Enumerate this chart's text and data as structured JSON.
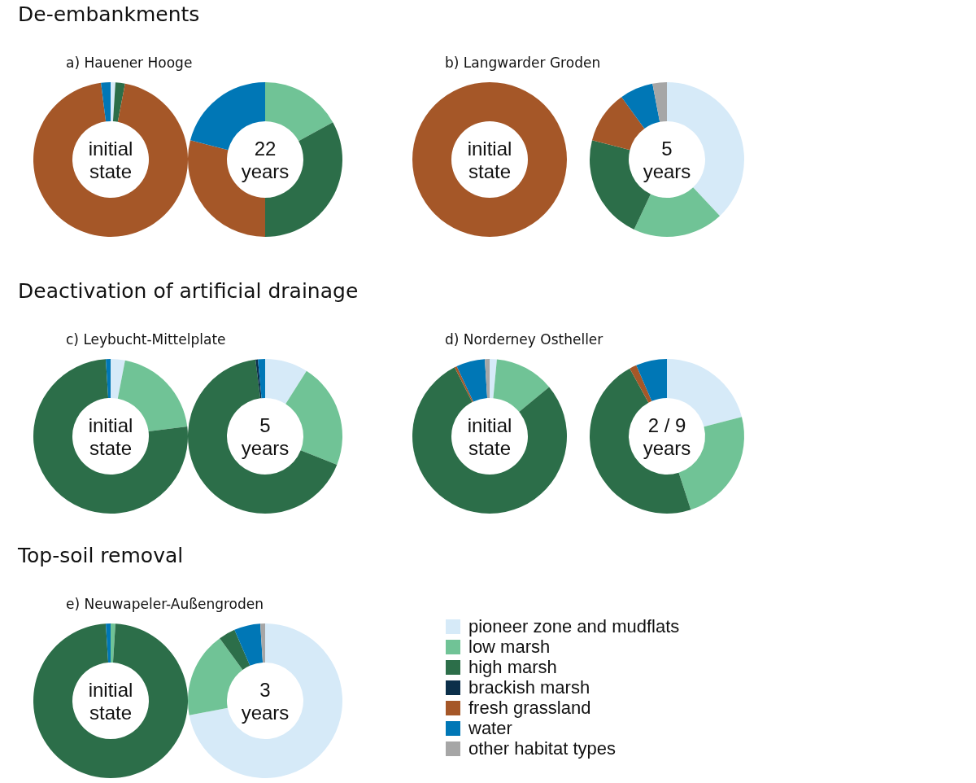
{
  "chart_data": [
    {
      "type": "donut",
      "title": "a) Hauener Hooge",
      "annotations": [
        "De-embankments",
        "initial\nstate"
      ],
      "categories": [
        null,
        null,
        null,
        null,
        null,
        null,
        null
      ],
      "values": [
        1,
        0,
        2,
        0,
        95,
        2,
        0
      ],
      "colors": [
        "#d6eaf8",
        "#70c396",
        "#2c6e49",
        "#0b2f4a",
        "#a55728",
        "#0077b6",
        "#a6a6a6"
      ],
      "legend": false
    },
    {
      "type": "donut",
      "annotations": [
        "22\nyears"
      ],
      "categories": [
        null,
        null,
        null,
        null,
        null,
        null,
        null
      ],
      "values": [
        0,
        17,
        33,
        0,
        29,
        21,
        0
      ],
      "colors": [
        "#d6eaf8",
        "#70c396",
        "#2c6e49",
        "#0b2f4a",
        "#a55728",
        "#0077b6",
        "#a6a6a6"
      ],
      "legend": false
    },
    {
      "type": "donut",
      "title": "b) Langwarder Groden",
      "annotations": [
        "initial\nstate"
      ],
      "categories": [
        null,
        null,
        null,
        null,
        null,
        null,
        null
      ],
      "values": [
        0,
        0,
        0,
        0,
        100,
        0,
        0
      ],
      "colors": [
        "#d6eaf8",
        "#70c396",
        "#2c6e49",
        "#0b2f4a",
        "#a55728",
        "#0077b6",
        "#a6a6a6"
      ],
      "legend": false
    },
    {
      "type": "donut",
      "annotations": [
        "5\nyears"
      ],
      "categories": [
        null,
        null,
        null,
        null,
        null,
        null,
        null
      ],
      "values": [
        38,
        19,
        22,
        0,
        11,
        7,
        3
      ],
      "colors": [
        "#d6eaf8",
        "#70c396",
        "#2c6e49",
        "#0b2f4a",
        "#a55728",
        "#0077b6",
        "#a6a6a6"
      ],
      "legend": false
    },
    {
      "type": "donut",
      "title": "c) Leybucht-Mittelplate",
      "annotations": [
        "Deactivation of artificial drainage",
        "initial\nstate"
      ],
      "categories": [
        null,
        null,
        null,
        null,
        null,
        null,
        null
      ],
      "values": [
        3,
        20,
        76,
        0,
        0,
        1,
        0
      ],
      "colors": [
        "#d6eaf8",
        "#70c396",
        "#2c6e49",
        "#0b2f4a",
        "#a55728",
        "#0077b6",
        "#a6a6a6"
      ],
      "legend": false
    },
    {
      "type": "donut",
      "annotations": [
        "5\nyears"
      ],
      "categories": [
        null,
        null,
        null,
        null,
        null,
        null,
        null
      ],
      "values": [
        9,
        22,
        67,
        0.5,
        0,
        1.5,
        0
      ],
      "colors": [
        "#d6eaf8",
        "#70c396",
        "#2c6e49",
        "#0b2f4a",
        "#a55728",
        "#0077b6",
        "#a6a6a6"
      ],
      "legend": false
    },
    {
      "type": "donut",
      "title": "d) Norderney Ostheller",
      "annotations": [
        "initial\nstate"
      ],
      "categories": [
        null,
        null,
        null,
        null,
        null,
        null,
        null
      ],
      "values": [
        1.5,
        12.5,
        78.5,
        0,
        0.5,
        6,
        1
      ],
      "colors": [
        "#d6eaf8",
        "#70c396",
        "#2c6e49",
        "#0b2f4a",
        "#a55728",
        "#0077b6",
        "#a6a6a6"
      ],
      "legend": false
    },
    {
      "type": "donut",
      "annotations": [
        "2 / 9\nyears"
      ],
      "categories": [
        null,
        null,
        null,
        null,
        null,
        null,
        null
      ],
      "values": [
        21,
        24,
        47,
        0,
        1.5,
        6.5,
        0
      ],
      "colors": [
        "#d6eaf8",
        "#70c396",
        "#2c6e49",
        "#0b2f4a",
        "#a55728",
        "#0077b6",
        "#a6a6a6"
      ],
      "legend": false
    },
    {
      "type": "donut",
      "title": "e) Neuwapeler-Außengroden",
      "annotations": [
        "Top-soil removal",
        "initial\nstate"
      ],
      "categories": [
        null,
        null,
        null,
        null,
        null,
        null,
        null
      ],
      "values": [
        0,
        1,
        98,
        0,
        0,
        1,
        0
      ],
      "colors": [
        "#d6eaf8",
        "#70c396",
        "#2c6e49",
        "#0b2f4a",
        "#a55728",
        "#0077b6",
        "#a6a6a6"
      ],
      "legend": false
    },
    {
      "type": "donut",
      "annotations": [
        "3\nyears"
      ],
      "categories": [
        "pioneer zone and mudflats",
        "low marsh",
        "high marsh",
        "brackish marsh",
        "fresh grassland",
        "water",
        "other habitat types"
      ],
      "values": [
        72,
        18,
        3.5,
        0,
        0,
        5.5,
        1
      ],
      "colors": [
        "#d6eaf8",
        "#70c396",
        "#2c6e49",
        "#0b2f4a",
        "#a55728",
        "#0077b6",
        "#a6a6a6"
      ],
      "legend": "right"
    }
  ]
}
